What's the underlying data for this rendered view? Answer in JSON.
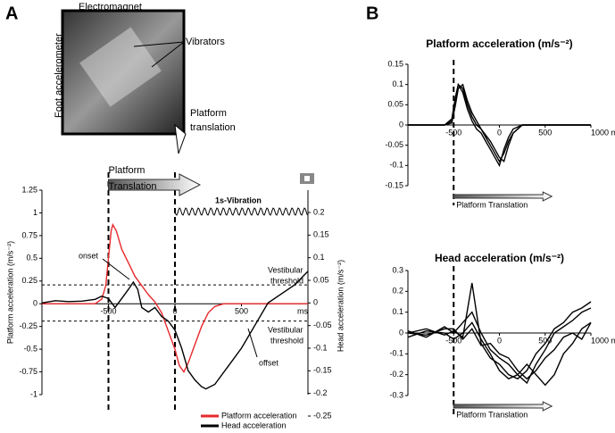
{
  "panel_labels": [
    "A",
    "B"
  ],
  "photo": {
    "labels": [
      "Electromagnet",
      "Foot accelerometer",
      "Vibrators"
    ],
    "platform_label": [
      "Platform",
      "translation"
    ]
  },
  "chart_data": [
    {
      "type": "line",
      "y_label": "Platform acceleration (m/s⁻²)",
      "y2_label": "Head acceleration (m/s⁻²)",
      "x_unit": "ms",
      "xlim": [
        -1000,
        1000
      ],
      "xticks": [
        -500,
        0,
        500
      ],
      "ylim": [
        -1,
        1.25
      ],
      "yticks": [
        -1,
        -0.75,
        -0.5,
        -0.25,
        0,
        0.25,
        0.5,
        0.75,
        1,
        1.25
      ],
      "y2lim": [
        -0.25,
        0.2
      ],
      "y2ticks": [
        -0.25,
        -0.2,
        -0.15,
        -0.1,
        -0.05,
        0,
        0.05,
        0.1,
        0.15,
        0.2
      ],
      "vlines": [
        -500,
        0
      ],
      "thresholds": [
        0.04,
        -0.04
      ],
      "arrow_label": [
        "Platform",
        "Translation"
      ],
      "vibration_label": "1s-Vibration",
      "annotations": {
        "onset": "onset",
        "offset": "offset",
        "threshold_upper": [
          "Vestibular",
          "threshold"
        ],
        "threshold_lower": [
          "Vestibular",
          "threshold"
        ]
      },
      "series": [
        {
          "name": "Platform acceleration",
          "color": "#e8292d",
          "x": [
            -1000,
            -600,
            -550,
            -520,
            -500,
            -480,
            -467,
            -440,
            -400,
            -350,
            -300,
            -250,
            -200,
            -150,
            -100,
            -50,
            0,
            33,
            67,
            100,
            150,
            200,
            250,
            300,
            367,
            500,
            700,
            1000
          ],
          "values": [
            0,
            0,
            0.05,
            0.2,
            0.5,
            0.8,
            0.87,
            0.8,
            0.6,
            0.45,
            0.3,
            0.2,
            0.1,
            0.02,
            -0.1,
            -0.3,
            -0.5,
            -0.68,
            -0.75,
            -0.65,
            -0.45,
            -0.25,
            -0.1,
            -0.03,
            0,
            0,
            0,
            0
          ]
        },
        {
          "name": "Head acceleration",
          "color": "#000000",
          "axis": "y2",
          "x": [
            -1000,
            -900,
            -800,
            -700,
            -600,
            -550,
            -500,
            -450,
            -400,
            -350,
            -313,
            -280,
            -250,
            -200,
            -150,
            -100,
            -50,
            0,
            50,
            100,
            150,
            200,
            233,
            300,
            400,
            500,
            600,
            700,
            800,
            900,
            1000
          ],
          "values": [
            0,
            0.005,
            0.003,
            0.004,
            0.008,
            0.015,
            0.01,
            -0.01,
            0.01,
            0.03,
            0.046,
            0.03,
            -0.01,
            -0.02,
            -0.01,
            -0.03,
            -0.04,
            -0.06,
            -0.1,
            -0.15,
            -0.17,
            -0.185,
            -0.19,
            -0.18,
            -0.14,
            -0.1,
            -0.05,
            0,
            0.02,
            0.04,
            0.07
          ]
        }
      ]
    },
    {
      "type": "line",
      "title": "Platform acceleration (m/s⁻²)",
      "xlim": [
        -1000,
        1000
      ],
      "xticks": [
        -500,
        0,
        500,
        {
          "value": 1000,
          "label": "1000 ms"
        }
      ],
      "ylim": [
        -0.15,
        0.15
      ],
      "yticks": [
        -0.15,
        -0.1,
        -0.05,
        0,
        0.05,
        0.1,
        0.15
      ],
      "vlines": [
        -500
      ],
      "arrow_label": "Platform Translation",
      "x": [
        -1000,
        -600,
        -520,
        -480,
        -450,
        -400,
        -350,
        -300,
        -250,
        -200,
        -150,
        -100,
        -50,
        0,
        50,
        100,
        150,
        250,
        500,
        1000
      ],
      "series": [
        {
          "color": "#000000",
          "values": [
            0,
            0,
            0.01,
            0.06,
            0.1,
            0.09,
            0.05,
            0.02,
            0,
            -0.01,
            -0.03,
            -0.05,
            -0.07,
            -0.09,
            -0.07,
            -0.04,
            -0.02,
            0,
            0,
            0
          ]
        },
        {
          "color": "#000000",
          "values": [
            0,
            0,
            0.005,
            0.05,
            0.09,
            0.1,
            0.06,
            0.03,
            0.01,
            -0.01,
            -0.025,
            -0.04,
            -0.06,
            -0.08,
            -0.09,
            -0.05,
            -0.02,
            0,
            0,
            0
          ]
        },
        {
          "color": "#000000",
          "values": [
            0,
            0,
            0.015,
            0.07,
            0.1,
            0.08,
            0.04,
            0.01,
            -0.01,
            -0.02,
            -0.04,
            -0.06,
            -0.08,
            -0.1,
            -0.06,
            -0.03,
            -0.01,
            0,
            0,
            0
          ]
        }
      ]
    },
    {
      "type": "line",
      "title": "Head acceleration (m/s⁻²)",
      "xlim": [
        -1000,
        1000
      ],
      "xticks": [
        -500,
        0,
        500,
        {
          "value": 1000,
          "label": "1000 ms"
        }
      ],
      "ylim": [
        -0.3,
        0.3
      ],
      "yticks": [
        -0.3,
        -0.2,
        -0.1,
        0,
        0.1,
        0.2,
        0.3
      ],
      "vlines": [
        -500
      ],
      "arrow_label": "Platform Translation",
      "x": [
        -1000,
        -800,
        -600,
        -500,
        -400,
        -300,
        -200,
        -100,
        0,
        100,
        200,
        300,
        400,
        500,
        600,
        700,
        800,
        900,
        1000
      ],
      "series": [
        {
          "color": "#000000",
          "values": [
            0,
            0.02,
            -0.01,
            0.01,
            -0.02,
            0.24,
            -0.05,
            -0.12,
            -0.15,
            -0.2,
            -0.22,
            -0.18,
            -0.1,
            -0.05,
            0.02,
            0.05,
            0.1,
            0.12,
            0.15
          ]
        },
        {
          "color": "#000000",
          "values": [
            0.01,
            -0.02,
            0.03,
            0,
            0.05,
            0.1,
            0,
            -0.08,
            -0.12,
            -0.15,
            -0.2,
            -0.24,
            -0.15,
            -0.08,
            0,
            0.03,
            0.06,
            0.1,
            0.12
          ]
        },
        {
          "color": "#000000",
          "values": [
            -0.02,
            0.01,
            0,
            -0.03,
            0,
            0.05,
            -0.03,
            -0.1,
            -0.18,
            -0.22,
            -0.2,
            -0.15,
            -0.2,
            -0.25,
            -0.2,
            -0.1,
            -0.05,
            0.02,
            0.05
          ]
        },
        {
          "color": "#000000",
          "values": [
            0,
            -0.01,
            0.02,
            0.02,
            -0.03,
            0.02,
            -0.06,
            -0.05,
            -0.1,
            -0.12,
            -0.18,
            -0.22,
            -0.18,
            -0.12,
            -0.08,
            -0.02,
            0,
            -0.03,
            0.05
          ]
        }
      ]
    }
  ]
}
